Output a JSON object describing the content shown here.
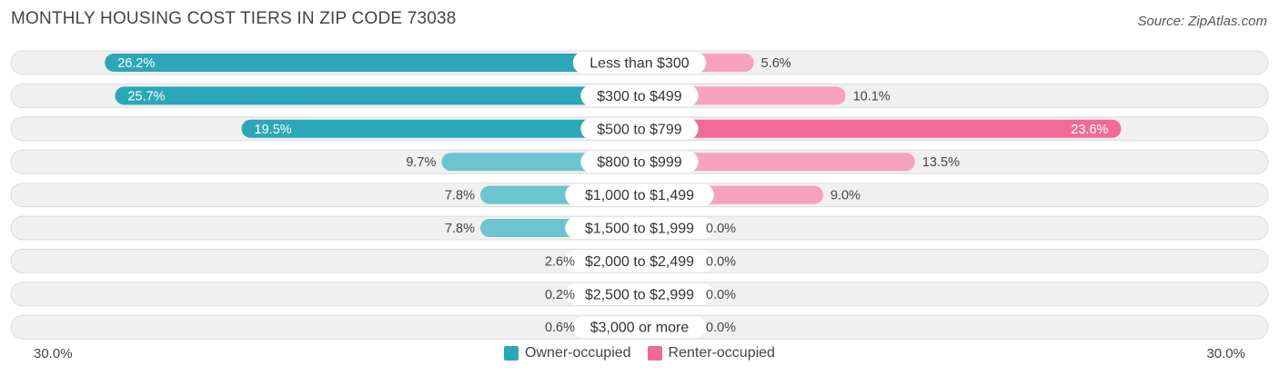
{
  "title": "MONTHLY HOUSING COST TIERS IN ZIP CODE 73038",
  "source": "Source: ZipAtlas.com",
  "colors": {
    "owner_strong": "#2ba7b8",
    "owner_light": "#6cc4cf",
    "renter_strong": "#f06b96",
    "renter_light": "#f6a1be",
    "row_bg": "#f0f0f0",
    "row_border": "#dcdcdc"
  },
  "axis": {
    "left_label": "30.0%",
    "right_label": "30.0%"
  },
  "legend": {
    "owner_label": "Owner-occupied",
    "renter_label": "Renter-occupied"
  },
  "chart_data": {
    "type": "bar",
    "orientation": "diverging-horizontal",
    "title": "MONTHLY HOUSING COST TIERS IN ZIP CODE 73038",
    "categories": [
      "Less than $300",
      "$300 to $499",
      "$500 to $799",
      "$800 to $999",
      "$1,000 to $1,499",
      "$1,500 to $1,999",
      "$2,000 to $2,499",
      "$2,500 to $2,999",
      "$3,000 or more"
    ],
    "series": [
      {
        "name": "Owner-occupied",
        "values": [
          26.2,
          25.7,
          19.5,
          9.7,
          7.8,
          7.8,
          2.6,
          0.2,
          0.6
        ]
      },
      {
        "name": "Renter-occupied",
        "values": [
          5.6,
          10.1,
          23.6,
          13.5,
          9.0,
          0.0,
          0.0,
          0.0,
          0.0
        ]
      }
    ],
    "value_labels": {
      "owner": [
        "26.2%",
        "25.7%",
        "19.5%",
        "9.7%",
        "7.8%",
        "7.8%",
        "2.6%",
        "0.2%",
        "0.6%"
      ],
      "renter": [
        "5.6%",
        "10.1%",
        "23.6%",
        "13.5%",
        "9.0%",
        "0.0%",
        "0.0%",
        "0.0%",
        "0.0%"
      ]
    },
    "xlim": [
      -30,
      30
    ],
    "legend_position": "bottom-center"
  }
}
